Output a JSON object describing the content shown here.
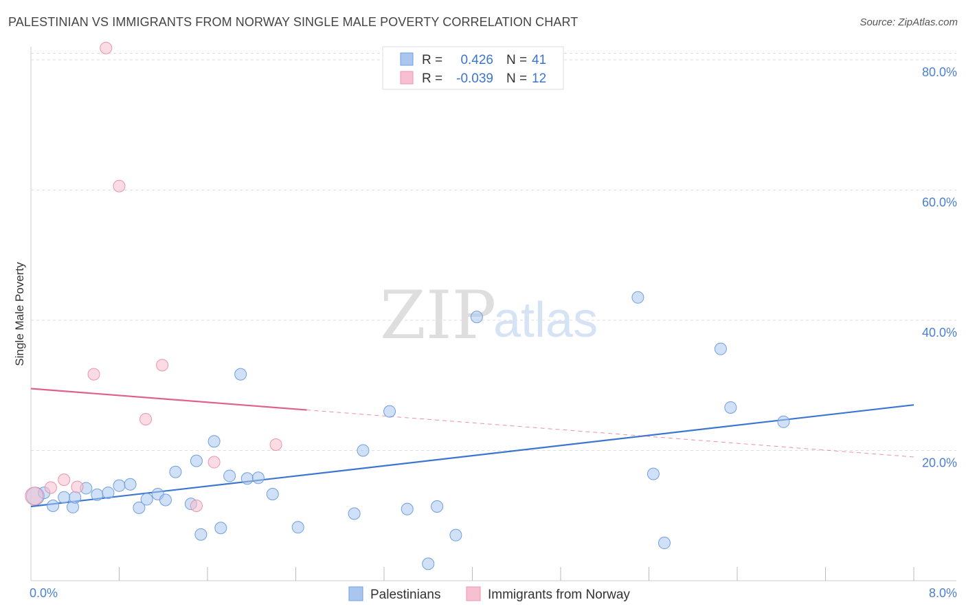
{
  "title": "PALESTINIAN VS IMMIGRANTS FROM NORWAY SINGLE MALE POVERTY CORRELATION CHART",
  "source": "Source: ZipAtlas.com",
  "watermark": {
    "zip": "ZIP",
    "atlas": "atlas"
  },
  "chart_data": {
    "type": "scatter",
    "xlabel": "",
    "ylabel": "Single Male Poverty",
    "xlim": [
      0,
      8
    ],
    "ylim": [
      0,
      82
    ],
    "x_tick_labels": {
      "left": "0.0%",
      "right": "8.0%"
    },
    "x_minor_ticks": [
      0.8,
      1.6,
      2.4,
      3.2,
      4.0,
      4.8,
      5.6,
      6.4,
      7.2,
      8.0
    ],
    "y_ticks": [
      {
        "value": 20,
        "label": "20.0%"
      },
      {
        "value": 40,
        "label": "40.0%"
      },
      {
        "value": 60,
        "label": "60.0%"
      },
      {
        "value": 80,
        "label": "80.0%"
      }
    ],
    "grid": true,
    "legend_placement": "top-center",
    "legend": [
      {
        "r_label": "R =",
        "r_value": "0.426",
        "n_label": "N =",
        "n_value": "41"
      },
      {
        "r_label": "R =",
        "r_value": "-0.039",
        "n_label": "N =",
        "n_value": "12"
      }
    ],
    "series": [
      {
        "name": "Palestinians",
        "color": "#a9c6ef",
        "stroke": "#6f9ee0",
        "line_color": "#3a76d0",
        "trend": {
          "x0": 0,
          "y0": 11.4,
          "x1": 8,
          "y1": 27.0
        },
        "points": [
          [
            0.04,
            13.0
          ],
          [
            0.12,
            13.5
          ],
          [
            0.2,
            11.5
          ],
          [
            0.3,
            12.8
          ],
          [
            0.38,
            11.3
          ],
          [
            0.4,
            12.8
          ],
          [
            0.5,
            14.2
          ],
          [
            0.6,
            13.2
          ],
          [
            0.7,
            13.5
          ],
          [
            0.8,
            14.6
          ],
          [
            0.9,
            14.8
          ],
          [
            0.98,
            11.2
          ],
          [
            1.05,
            12.5
          ],
          [
            1.15,
            13.3
          ],
          [
            1.22,
            12.4
          ],
          [
            1.31,
            16.7
          ],
          [
            1.45,
            11.8
          ],
          [
            1.5,
            18.4
          ],
          [
            1.54,
            7.1
          ],
          [
            1.66,
            21.4
          ],
          [
            1.72,
            8.1
          ],
          [
            1.8,
            16.1
          ],
          [
            1.9,
            31.7
          ],
          [
            1.96,
            15.7
          ],
          [
            2.06,
            15.8
          ],
          [
            2.19,
            13.3
          ],
          [
            2.42,
            8.2
          ],
          [
            2.93,
            10.3
          ],
          [
            3.01,
            20.0
          ],
          [
            3.25,
            26.0
          ],
          [
            3.41,
            11.0
          ],
          [
            3.6,
            2.6
          ],
          [
            3.68,
            11.4
          ],
          [
            3.85,
            7.0
          ],
          [
            4.04,
            40.5
          ],
          [
            5.5,
            43.5
          ],
          [
            5.64,
            16.4
          ],
          [
            5.74,
            5.8
          ],
          [
            6.25,
            35.6
          ],
          [
            6.34,
            26.6
          ],
          [
            6.82,
            24.4
          ]
        ]
      },
      {
        "name": "Immigrants from Norway",
        "color": "#f7c0d0",
        "stroke": "#ec93ad",
        "line_color": "#e0608a",
        "trend": {
          "x0": 0,
          "y0": 29.5,
          "x1": 8,
          "y1": 19.0
        },
        "trend_solid_until": 2.5,
        "points": [
          [
            0.03,
            13.0
          ],
          [
            0.18,
            14.3
          ],
          [
            0.3,
            15.5
          ],
          [
            0.42,
            14.4
          ],
          [
            0.57,
            31.7
          ],
          [
            0.68,
            81.8
          ],
          [
            0.8,
            60.6
          ],
          [
            1.04,
            24.8
          ],
          [
            1.19,
            33.1
          ],
          [
            1.5,
            11.5
          ],
          [
            1.66,
            18.2
          ],
          [
            2.22,
            20.9
          ]
        ]
      }
    ]
  }
}
